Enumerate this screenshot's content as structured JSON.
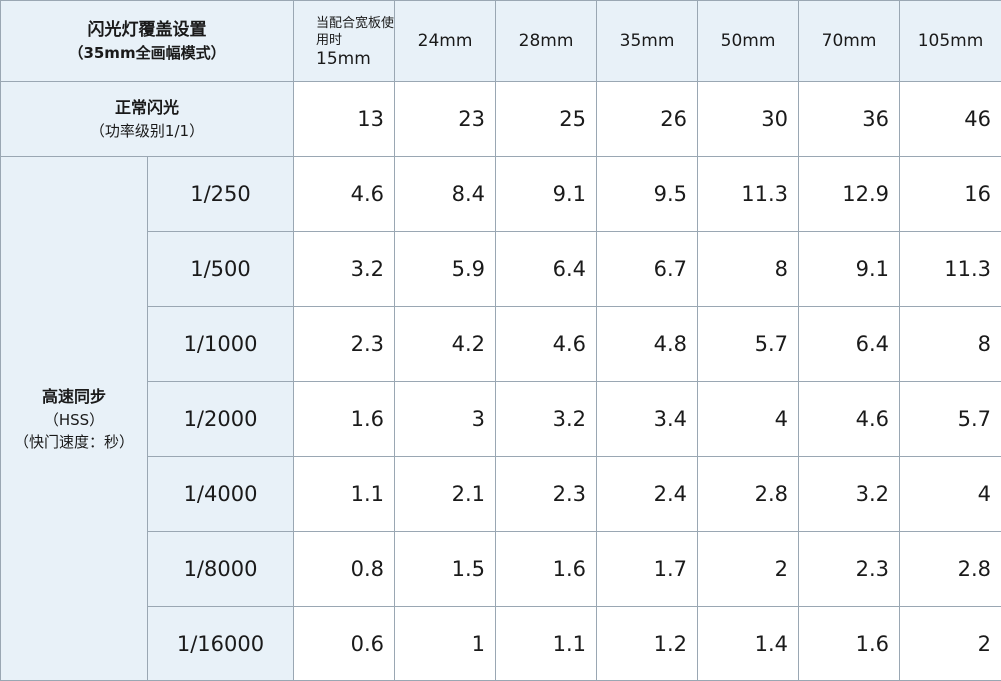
{
  "table": {
    "corner_title": "闪光灯覆盖设置",
    "corner_subtitle": "（35mm全画幅模式）",
    "wide_panel_note": "当配合宽板使用时",
    "wide_panel_value": "15mm",
    "focal_lengths": [
      "24mm",
      "28mm",
      "35mm",
      "50mm",
      "70mm",
      "105mm"
    ],
    "normal_flash": {
      "label": "正常闪光",
      "sublabel": "（功率级别1/1）",
      "values": [
        "13",
        "23",
        "25",
        "26",
        "30",
        "36",
        "46"
      ]
    },
    "hss": {
      "label": "高速同步",
      "sublabel1": "（HSS）",
      "sublabel2": "（快门速度：秒）",
      "rows": [
        {
          "speed": "1/250",
          "values": [
            "4.6",
            "8.4",
            "9.1",
            "9.5",
            "11.3",
            "12.9",
            "16"
          ]
        },
        {
          "speed": "1/500",
          "values": [
            "3.2",
            "5.9",
            "6.4",
            "6.7",
            "8",
            "9.1",
            "11.3"
          ]
        },
        {
          "speed": "1/1000",
          "values": [
            "2.3",
            "4.2",
            "4.6",
            "4.8",
            "5.7",
            "6.4",
            "8"
          ]
        },
        {
          "speed": "1/2000",
          "values": [
            "1.6",
            "3",
            "3.2",
            "3.4",
            "4",
            "4.6",
            "5.7"
          ]
        },
        {
          "speed": "1/4000",
          "values": [
            "1.1",
            "2.1",
            "2.3",
            "2.4",
            "2.8",
            "3.2",
            "4"
          ]
        },
        {
          "speed": "1/8000",
          "values": [
            "0.8",
            "1.5",
            "1.6",
            "1.7",
            "2",
            "2.3",
            "2.8"
          ]
        },
        {
          "speed": "1/16000",
          "values": [
            "0.6",
            "1",
            "1.1",
            "1.2",
            "1.4",
            "1.6",
            "2"
          ]
        }
      ]
    },
    "colors": {
      "header_bg": "#e8f1f8",
      "border": "#9aa7b3",
      "cell_bg": "#ffffff"
    }
  }
}
